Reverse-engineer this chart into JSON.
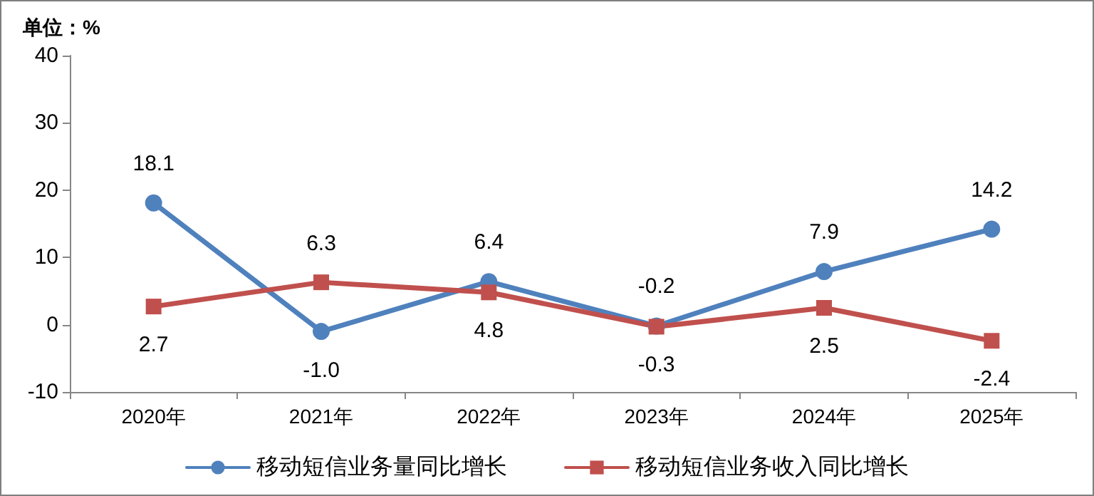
{
  "chart_data": {
    "type": "line",
    "ylabel": "单位：%",
    "categories": [
      "2020年",
      "2021年",
      "2022年",
      "2023年",
      "2024年",
      "2025年"
    ],
    "series": [
      {
        "name": "移动短信业务量同比增长",
        "color": "#4f81bd",
        "marker": "circle",
        "values": [
          18.1,
          -1.0,
          6.4,
          -0.2,
          7.9,
          14.2
        ],
        "value_labels": [
          "18.1",
          "-1.0",
          "6.4",
          "-0.2",
          "7.9",
          "14.2"
        ]
      },
      {
        "name": "移动短信业务收入同比增长",
        "color": "#c0504d",
        "marker": "square",
        "values": [
          2.7,
          6.3,
          4.8,
          -0.3,
          2.5,
          -2.4
        ],
        "value_labels": [
          "2.7",
          "6.3",
          "4.8",
          "-0.3",
          "2.5",
          "-2.4"
        ]
      }
    ],
    "ylim": [
      -10,
      40
    ],
    "yticks": [
      -10,
      0,
      10,
      20,
      30,
      40
    ],
    "grid": false,
    "legend": "bottom",
    "line_style": "solid"
  }
}
